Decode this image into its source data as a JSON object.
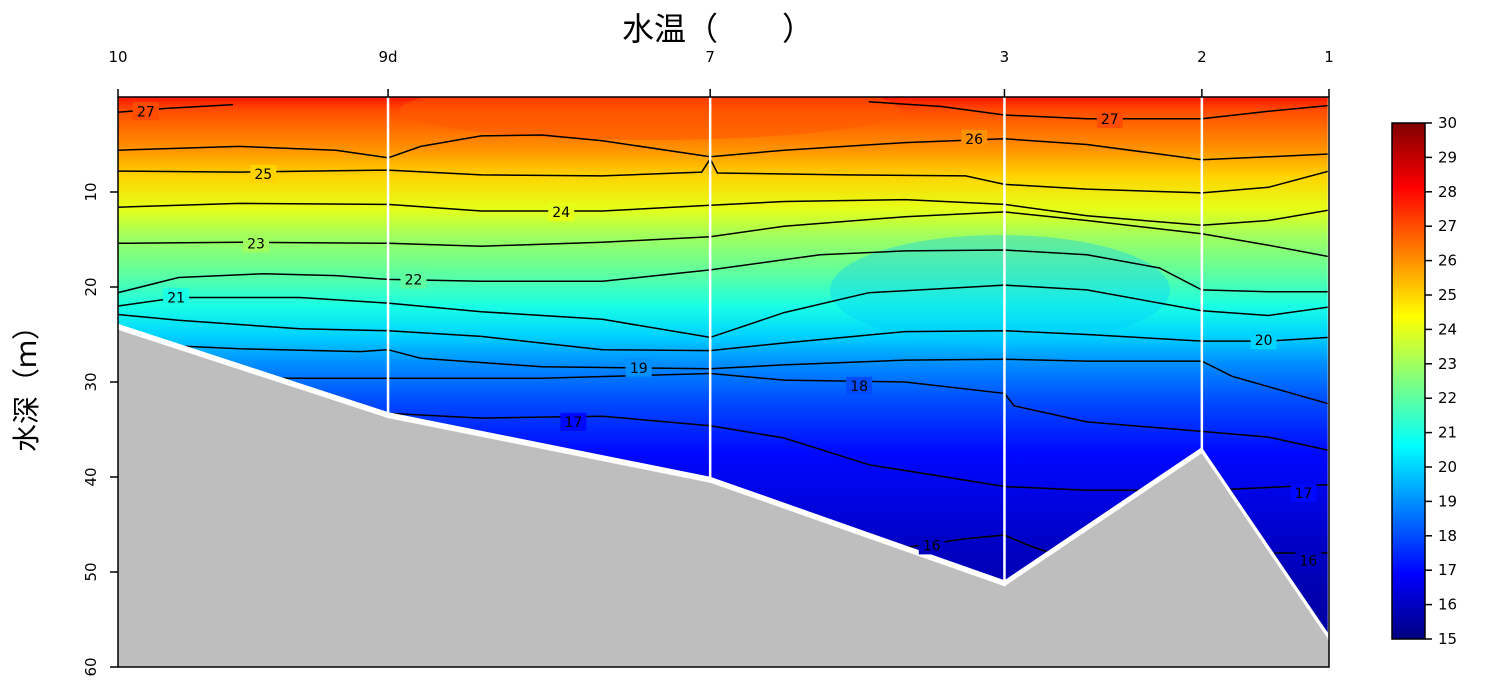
{
  "chart_data": {
    "type": "heatmap",
    "title": "水温（　　）",
    "xlabel": "",
    "ylabel": "水深（ｍ）",
    "ylim": [
      0,
      60
    ],
    "y_reversed": true,
    "x_ticks": [
      {
        "label": "10",
        "distance": 0
      },
      {
        "label": "9d",
        "distance": 22.3
      },
      {
        "label": "7",
        "distance": 48.9
      },
      {
        "label": "3",
        "distance": 73.2
      },
      {
        "label": "2",
        "distance": 89.5
      },
      {
        "label": "1",
        "distance": 100
      }
    ],
    "y_ticks": [
      10,
      20,
      30,
      40,
      50,
      60
    ],
    "bottom_depth": [
      {
        "distance": 0,
        "depth": 24.5
      },
      {
        "distance": 22.3,
        "depth": 33.8
      },
      {
        "distance": 48.9,
        "depth": 40.6
      },
      {
        "distance": 73.2,
        "depth": 51.5
      },
      {
        "distance": 89.5,
        "depth": 37.5
      },
      {
        "distance": 100,
        "depth": 57.2
      }
    ],
    "colorbar": {
      "min": 15,
      "max": 30,
      "ticks": [
        15,
        16,
        17,
        18,
        19,
        20,
        21,
        22,
        23,
        24,
        25,
        26,
        27,
        28,
        29,
        30
      ],
      "colormap": [
        "#00007f",
        "#0000ff",
        "#007fff",
        "#00ffff",
        "#7fff7f",
        "#ffff00",
        "#ff7f00",
        "#ff0000",
        "#7f0000"
      ]
    },
    "contours": [
      {
        "level": 27,
        "labels": [
          {
            "distance": 2.3,
            "depth": 1.5
          },
          {
            "distance": 81.9,
            "depth": 2.3
          }
        ],
        "segments": [
          [
            [
              0,
              1.6
            ],
            [
              4,
              1.2
            ],
            [
              9.5,
              0.8
            ]
          ],
          [
            [
              62,
              0.5
            ],
            [
              68,
              1.0
            ],
            [
              73.2,
              1.9
            ],
            [
              80,
              2.3
            ],
            [
              89.5,
              2.3
            ],
            [
              95,
              1.5
            ],
            [
              100,
              0.9
            ]
          ]
        ]
      },
      {
        "level": 26,
        "labels": [
          {
            "distance": 70.7,
            "depth": 4.4
          }
        ],
        "segments": [
          [
            [
              0,
              5.6
            ],
            [
              10,
              5.2
            ],
            [
              18,
              5.6
            ],
            [
              22.3,
              6.4
            ],
            [
              25,
              5.2
            ],
            [
              30,
              4.1
            ],
            [
              35,
              4.0
            ],
            [
              40,
              4.6
            ],
            [
              48.9,
              6.3
            ],
            [
              55,
              5.6
            ],
            [
              65,
              4.8
            ],
            [
              73.2,
              4.4
            ],
            [
              80,
              5.0
            ],
            [
              89.5,
              6.6
            ],
            [
              95,
              6.3
            ],
            [
              100,
              6.0
            ]
          ]
        ]
      },
      {
        "level": 25,
        "labels": [
          {
            "distance": 12,
            "depth": 8.1
          }
        ],
        "segments": [
          [
            [
              0,
              7.8
            ],
            [
              10,
              7.9
            ],
            [
              22.3,
              7.7
            ],
            [
              30,
              8.2
            ],
            [
              40,
              8.3
            ],
            [
              48.2,
              7.9
            ],
            [
              48.9,
              6.5
            ],
            [
              49.5,
              8.0
            ],
            [
              60,
              8.2
            ],
            [
              70,
              8.3
            ],
            [
              73.2,
              9.2
            ],
            [
              80,
              9.7
            ],
            [
              89.5,
              10.1
            ],
            [
              95,
              9.5
            ],
            [
              100,
              7.8
            ]
          ]
        ]
      },
      {
        "level": 24,
        "labels": [
          {
            "distance": 36.6,
            "depth": 12.1
          }
        ],
        "segments": [
          [
            [
              0,
              11.6
            ],
            [
              10,
              11.2
            ],
            [
              22.3,
              11.3
            ],
            [
              30,
              12.0
            ],
            [
              40,
              12.0
            ],
            [
              48.9,
              11.4
            ],
            [
              55,
              11.0
            ],
            [
              65,
              10.8
            ],
            [
              73.2,
              11.3
            ],
            [
              80,
              12.5
            ],
            [
              89.5,
              13.5
            ],
            [
              95,
              13.0
            ],
            [
              100,
              11.9
            ]
          ]
        ]
      },
      {
        "level": 23,
        "labels": [
          {
            "distance": 11.4,
            "depth": 15.4
          }
        ],
        "segments": [
          [
            [
              0,
              15.4
            ],
            [
              10,
              15.3
            ],
            [
              22.3,
              15.4
            ],
            [
              30,
              15.7
            ],
            [
              40,
              15.3
            ],
            [
              48.9,
              14.7
            ],
            [
              55,
              13.6
            ],
            [
              65,
              12.6
            ],
            [
              73.2,
              12.1
            ],
            [
              80,
              13.0
            ],
            [
              89.5,
              14.4
            ],
            [
              95,
              15.6
            ],
            [
              100,
              16.8
            ]
          ]
        ]
      },
      {
        "level": 22,
        "labels": [
          {
            "distance": 24.4,
            "depth": 19.2
          }
        ],
        "segments": [
          [
            [
              0,
              20.6
            ],
            [
              5,
              19.0
            ],
            [
              12,
              18.6
            ],
            [
              18,
              18.8
            ],
            [
              22.3,
              19.2
            ],
            [
              30,
              19.4
            ],
            [
              40,
              19.4
            ],
            [
              48.9,
              18.2
            ],
            [
              58,
              16.6
            ],
            [
              65,
              16.2
            ],
            [
              73.2,
              16.1
            ],
            [
              80,
              16.6
            ],
            [
              86,
              18.0
            ],
            [
              89.5,
              20.3
            ],
            [
              95,
              20.5
            ],
            [
              100,
              20.5
            ]
          ]
        ]
      },
      {
        "level": 21,
        "labels": [
          {
            "distance": 4.8,
            "depth": 21.1
          }
        ],
        "segments": [
          [
            [
              0,
              22.0
            ],
            [
              5,
              21.1
            ],
            [
              15,
              21.1
            ],
            [
              22.3,
              21.7
            ],
            [
              30,
              22.6
            ],
            [
              40,
              23.4
            ],
            [
              48.9,
              25.3
            ],
            [
              55,
              22.7
            ],
            [
              62,
              20.6
            ],
            [
              73.2,
              19.8
            ],
            [
              80,
              20.3
            ],
            [
              89.5,
              22.5
            ],
            [
              95,
              23.0
            ],
            [
              100,
              22.1
            ]
          ]
        ]
      },
      {
        "level": 20,
        "labels": [
          {
            "distance": 94.6,
            "depth": 25.6
          }
        ],
        "segments": [
          [
            [
              0,
              22.9
            ],
            [
              5,
              23.5
            ],
            [
              15,
              24.4
            ],
            [
              22.3,
              24.6
            ],
            [
              30,
              25.2
            ],
            [
              40,
              26.6
            ],
            [
              48.9,
              26.7
            ],
            [
              55,
              25.9
            ],
            [
              65,
              24.7
            ],
            [
              73.2,
              24.6
            ],
            [
              80,
              25.0
            ],
            [
              89.5,
              25.7
            ],
            [
              95,
              25.7
            ],
            [
              100,
              25.3
            ]
          ]
        ]
      },
      {
        "level": 19,
        "labels": [
          {
            "distance": 43,
            "depth": 28.5
          }
        ],
        "segments": [
          [
            [
              3,
              26.1
            ],
            [
              10,
              26.5
            ],
            [
              20,
              26.8
            ],
            [
              22.3,
              26.6
            ],
            [
              25,
              27.5
            ],
            [
              35,
              28.4
            ],
            [
              48.9,
              28.6
            ],
            [
              55,
              28.2
            ],
            [
              65,
              27.7
            ],
            [
              73.2,
              27.6
            ],
            [
              80,
              27.8
            ],
            [
              89.5,
              27.8
            ],
            [
              92,
              29.4
            ],
            [
              100,
              32.3
            ]
          ]
        ]
      },
      {
        "level": 18,
        "labels": [
          {
            "distance": 61.2,
            "depth": 30.4
          }
        ],
        "segments": [
          [
            [
              13,
              29.6
            ],
            [
              22.3,
              29.6
            ],
            [
              35,
              29.6
            ],
            [
              48.9,
              29.1
            ],
            [
              55,
              29.8
            ],
            [
              65,
              30.0
            ],
            [
              73.2,
              31.2
            ],
            [
              74,
              32.5
            ],
            [
              80,
              34.2
            ],
            [
              89.5,
              35.2
            ],
            [
              95,
              35.8
            ],
            [
              100,
              37.2
            ]
          ]
        ]
      },
      {
        "level": 17,
        "labels": [
          {
            "distance": 37.6,
            "depth": 34.2
          },
          {
            "distance": 97.9,
            "depth": 41.7
          }
        ],
        "segments": [
          [
            [
              22.3,
              33.3
            ],
            [
              30,
              33.8
            ],
            [
              40,
              33.6
            ],
            [
              48.9,
              34.6
            ],
            [
              55,
              35.9
            ],
            [
              62,
              38.7
            ],
            [
              73.2,
              41.0
            ],
            [
              80,
              41.4
            ],
            [
              90,
              41.4
            ],
            [
              100,
              40.8
            ]
          ]
        ]
      },
      {
        "level": 16,
        "labels": [
          {
            "distance": 67.2,
            "depth": 47.2
          },
          {
            "distance": 98.3,
            "depth": 48.8
          }
        ],
        "segments": [
          [
            [
              63,
              47.8
            ],
            [
              70,
              46.5
            ],
            [
              73.2,
              46.1
            ],
            [
              75,
              47.1
            ],
            [
              77,
              48.0
            ]
          ],
          [
            [
              95.5,
              48.0
            ],
            [
              100,
              48.0
            ]
          ]
        ]
      }
    ]
  }
}
